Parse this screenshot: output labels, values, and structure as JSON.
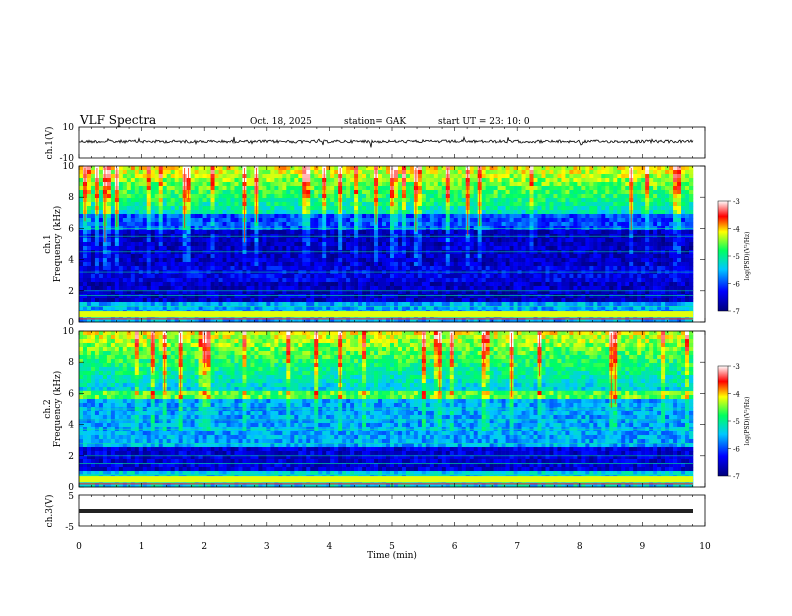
{
  "header": {
    "title": "VLF  Spectra",
    "date": "Oct. 18, 2025",
    "station": "station= GAK",
    "start": "start  UT  =    23: 10: 0"
  },
  "chart_data": [
    {
      "type": "line",
      "title": "",
      "ylabel": "ch.1(V)",
      "yticks": [
        "10",
        "-10"
      ],
      "ylim": [
        -10,
        10
      ],
      "xlim": [
        0,
        10
      ],
      "baseline_value": 0,
      "series": [
        {
          "name": "",
          "values_note_level": 0
        }
      ]
    },
    {
      "type": "heatmap",
      "ylabel_top": "ch.1",
      "ylabel": "Frequency  (kHz)",
      "xlim": [
        0,
        10
      ],
      "ylim": [
        0,
        10
      ],
      "yticks": [
        "0",
        "2",
        "4",
        "6",
        "8",
        "10"
      ],
      "colorbar": {
        "label": "log(PSD)(V²/Hz)",
        "ticks": [
          "-3",
          "-4",
          "-5",
          "-6",
          "-7"
        ],
        "range": [
          -7,
          -3
        ]
      }
    },
    {
      "type": "heatmap",
      "ylabel_top": "ch.2",
      "ylabel": "Frequency  (kHz)",
      "xlim": [
        0,
        10
      ],
      "ylim": [
        0,
        10
      ],
      "yticks": [
        "0",
        "2",
        "4",
        "6",
        "8",
        "10"
      ],
      "colorbar": {
        "label": "log(PSD)(V²/Hz)",
        "ticks": [
          "-3",
          "-4",
          "-5",
          "-6",
          "-7"
        ],
        "range": [
          -7,
          -3
        ]
      }
    },
    {
      "type": "line",
      "ylabel": "ch.3(V)",
      "yticks": [
        "5",
        "-5"
      ],
      "ylim": [
        -5,
        5
      ],
      "xlim": [
        0,
        10
      ],
      "series": [
        {
          "name": "",
          "level": 0
        }
      ]
    }
  ],
  "xaxis": {
    "label": "Time  (min)",
    "ticks": [
      "0",
      "1",
      "2",
      "3",
      "4",
      "5",
      "6",
      "7",
      "8",
      "9",
      "10"
    ]
  }
}
